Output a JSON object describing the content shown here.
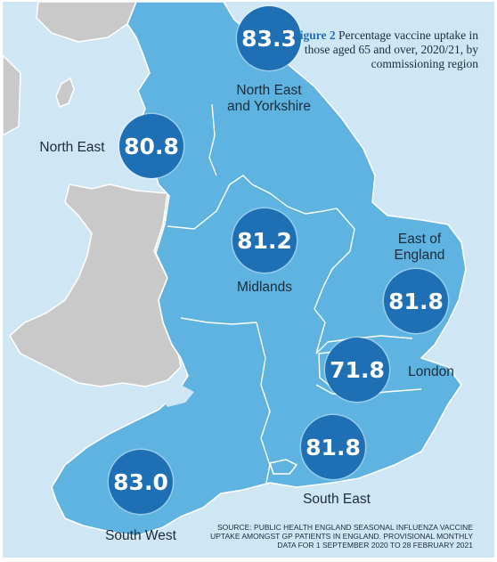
{
  "title": {
    "figure_number": "Figure 2",
    "caption": "Percentage vaccine uptake in those aged 65 and over, 2020/21, by commissioning region"
  },
  "regions": [
    {
      "name": "North East and Yorkshire",
      "label": "North East\nand Yorkshire",
      "value": "83.3"
    },
    {
      "name": "North East",
      "label": "North East",
      "value": "80.8"
    },
    {
      "name": "Midlands",
      "label": "Midlands",
      "value": "81.2"
    },
    {
      "name": "East of England",
      "label": "East of\nEngland",
      "value": "81.8"
    },
    {
      "name": "London",
      "label": "London",
      "value": "71.8"
    },
    {
      "name": "South East",
      "label": "South East",
      "value": "81.8"
    },
    {
      "name": "South West",
      "label": "South West",
      "value": "83.0"
    }
  ],
  "source": "Source: Public Health England seasonal influenza vaccine uptake amongst GP patients in England. Provisional monthly data for 1 September 2020 to 28 February 2021",
  "colors": {
    "sea": "#cfe7f5",
    "england": "#5eb3e0",
    "other_land": "#c9c9c9",
    "bubble": "#1f6fb5",
    "figure_accent": "#1f6fb5"
  }
}
